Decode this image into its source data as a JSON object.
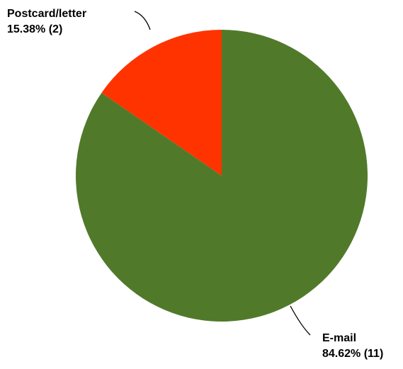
{
  "chart_data": {
    "type": "pie",
    "title": "",
    "start_angle_deg": 0,
    "direction": "clockwise",
    "slices": [
      {
        "name": "E-mail",
        "value": 11,
        "percent_label": "84.62% (11)",
        "color": "#507A2A"
      },
      {
        "name": "Postcard/letter",
        "value": 2,
        "percent_label": "15.38% (2)",
        "color": "#FF3300"
      }
    ]
  }
}
